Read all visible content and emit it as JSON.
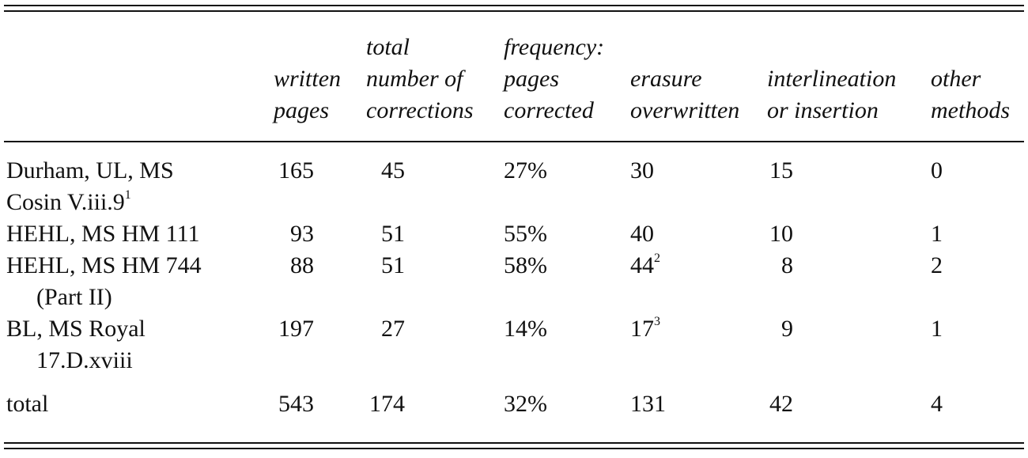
{
  "table": {
    "headers": [
      [
        "written",
        "pages"
      ],
      [
        "total",
        "number of",
        "corrections"
      ],
      [
        "frequency:",
        "pages",
        "corrected"
      ],
      [
        "erasure",
        "overwritten"
      ],
      [
        "interlineation",
        "or insertion"
      ],
      [
        "other",
        "methods"
      ]
    ],
    "rows": [
      {
        "label": [
          "Durham, UL, MS",
          "Cosin V.iii.9"
        ],
        "label_note": "1",
        "cells": [
          "165",
          "45",
          "27%",
          "30",
          "15",
          "0"
        ]
      },
      {
        "label": [
          "HEHL, MS HM 111"
        ],
        "cells": [
          "93",
          "51",
          "55%",
          "40",
          "10",
          "1"
        ]
      },
      {
        "label": [
          "HEHL, MS HM 744",
          "(Part II)"
        ],
        "cells": [
          "88",
          "51",
          "58%",
          {
            "text": "44",
            "note": "2"
          },
          "8",
          "2"
        ]
      },
      {
        "label": [
          "BL, MS Royal",
          "17.D.xviii"
        ],
        "cells": [
          "197",
          "27",
          "14%",
          {
            "text": "17",
            "note": "3"
          },
          "9",
          "1"
        ]
      },
      {
        "label": [
          "total"
        ],
        "cells": [
          "543",
          "174",
          "32%",
          "131",
          "42",
          "4"
        ]
      }
    ]
  }
}
